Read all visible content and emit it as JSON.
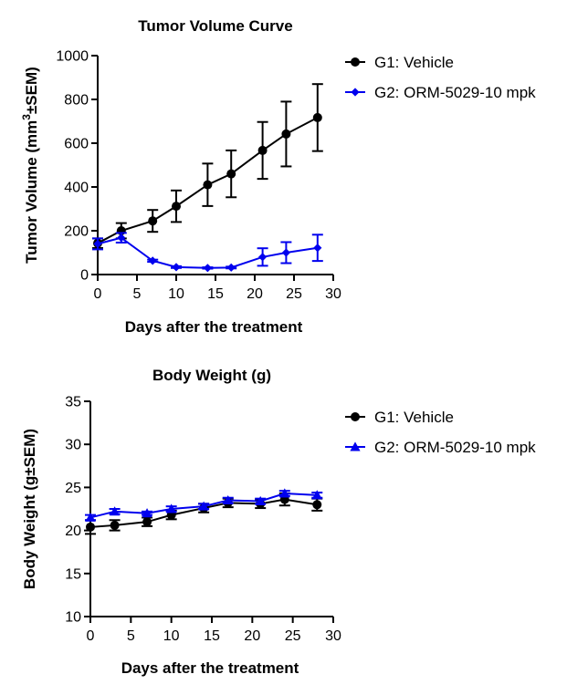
{
  "chart_data": [
    {
      "type": "line",
      "title": "Tumor Volume Curve",
      "xlabel": "Days after the treatment",
      "ylabel_main": "Tumor Volume (mm",
      "ylabel_sup": "3",
      "ylabel_tail": "±SEM)",
      "xlim": [
        0,
        30
      ],
      "ylim": [
        0,
        1000
      ],
      "xticks": [
        "0",
        "5",
        "10",
        "15",
        "20",
        "25",
        "30"
      ],
      "yticks": [
        "0",
        "200",
        "400",
        "600",
        "800",
        "1000"
      ],
      "legend_position": "top-right",
      "series": [
        {
          "name": "G1: Vehicle",
          "color": "#000000",
          "marker": "circle",
          "x": [
            0,
            3,
            7,
            10,
            14,
            17,
            21,
            24,
            28
          ],
          "y": [
            143,
            200,
            245,
            312,
            410,
            460,
            567,
            642,
            717
          ],
          "err": [
            22,
            35,
            50,
            72,
            97,
            107,
            130,
            148,
            153
          ]
        },
        {
          "name": "G2: ORM-5029-10 mpk",
          "color": "#0000ee",
          "marker": "diamond",
          "x": [
            0,
            3,
            7,
            10,
            14,
            17,
            21,
            24,
            28
          ],
          "y": [
            140,
            168,
            63,
            34,
            30,
            32,
            80,
            100,
            122
          ],
          "err": [
            25,
            22,
            5,
            4,
            3,
            4,
            40,
            48,
            60
          ]
        }
      ]
    },
    {
      "type": "line",
      "title": "Body Weight (g)",
      "xlabel": "Days after the treatment",
      "ylabel_main": "Body Weight (g±SEM)",
      "ylabel_sup": "",
      "ylabel_tail": "",
      "xlim": [
        0,
        30
      ],
      "ylim": [
        10,
        35
      ],
      "xticks": [
        "0",
        "5",
        "10",
        "15",
        "20",
        "25",
        "30"
      ],
      "yticks": [
        "10",
        "15",
        "20",
        "25",
        "30",
        "35"
      ],
      "legend_position": "top-right",
      "series": [
        {
          "name": "G1: Vehicle",
          "color": "#000000",
          "marker": "circle",
          "x": [
            0,
            3,
            7,
            10,
            14,
            17,
            21,
            24,
            28
          ],
          "y": [
            20.4,
            20.6,
            21.0,
            21.8,
            22.6,
            23.2,
            23.1,
            23.6,
            23.0
          ],
          "err": [
            0.8,
            0.6,
            0.5,
            0.5,
            0.5,
            0.5,
            0.5,
            0.7,
            0.7
          ]
        },
        {
          "name": "G2: ORM-5029-10 mpk",
          "color": "#0000ee",
          "marker": "triangle",
          "x": [
            0,
            3,
            7,
            10,
            14,
            17,
            21,
            24,
            28
          ],
          "y": [
            21.5,
            22.2,
            22.0,
            22.5,
            22.8,
            23.5,
            23.4,
            24.3,
            24.1
          ],
          "err": [
            0.3,
            0.3,
            0.2,
            0.3,
            0.3,
            0.3,
            0.3,
            0.3,
            0.3
          ]
        }
      ]
    }
  ]
}
